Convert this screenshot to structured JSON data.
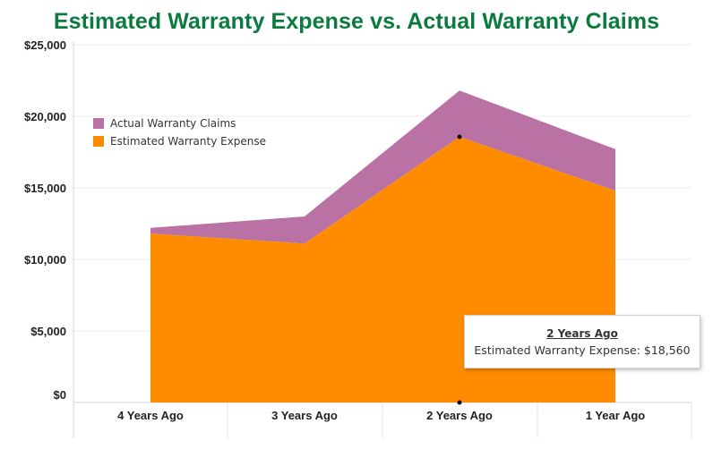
{
  "title": "Estimated Warranty Expense vs. Actual Warranty Claims",
  "chart_data": {
    "type": "area",
    "stacked": true,
    "categories": [
      "4 Years Ago",
      "3 Years Ago",
      "2 Years Ago",
      "1 Year Ago"
    ],
    "series": [
      {
        "name": "Estimated Warranty Expense",
        "color": "#ff8c00",
        "values": [
          11800,
          11100,
          18560,
          14800
        ]
      },
      {
        "name": "Actual Warranty Claims",
        "color": "#b972a3",
        "values": [
          400,
          1900,
          3240,
          2900
        ]
      }
    ],
    "ylim": [
      0,
      25000
    ],
    "yticks": [
      0,
      5000,
      10000,
      15000,
      20000,
      25000
    ],
    "ytick_labels": [
      "$0",
      "$5,000",
      "$10,000",
      "$15,000",
      "$20,000",
      "$25,000"
    ],
    "grid": true,
    "legend": {
      "placement": "top-left",
      "items": [
        "Actual Warranty Claims",
        "Estimated Warranty Expense"
      ]
    },
    "highlight": {
      "category_index": 2
    }
  },
  "tooltip": {
    "title": "2 Years Ago",
    "line": "Estimated Warranty Expense: $18,560"
  }
}
